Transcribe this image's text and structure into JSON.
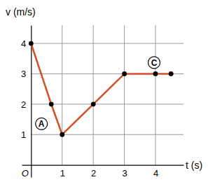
{
  "chart_data": {
    "type": "line",
    "x_label": "t (s)",
    "y_label": "v (m/s)",
    "x": [
      0,
      0.65,
      1,
      2,
      3,
      4,
      4.5
    ],
    "series": [
      {
        "name": "v",
        "color": "#d35227",
        "marker": "circle",
        "line_style": "solid",
        "values": [
          4,
          2,
          1,
          2,
          3,
          3,
          3
        ]
      }
    ],
    "xlim": [
      -0.3,
      4.9
    ],
    "ylim": [
      -0.4,
      4.6
    ],
    "xticks": [
      {
        "value": 0,
        "label": "O"
      },
      1,
      2,
      3,
      4
    ],
    "yticks": [
      1,
      2,
      3,
      4
    ],
    "grid": true,
    "annotations": [
      {
        "text": "A",
        "x": 0.65,
        "y": 2
      },
      {
        "text": "C",
        "x": 4,
        "y": 3
      }
    ]
  }
}
